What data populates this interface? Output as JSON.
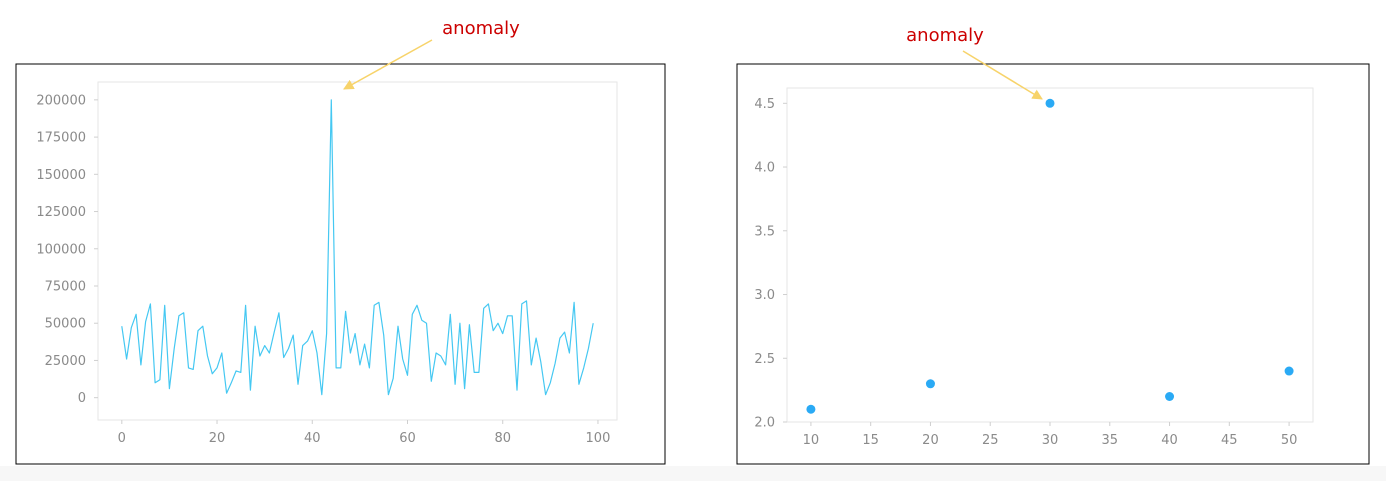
{
  "colors": {
    "series": "#45c8f2",
    "marker": "#2aaaf5",
    "annotation_text": "#cc0000",
    "annotation_arrow": "#f7d36a"
  },
  "chart_data": [
    {
      "type": "line",
      "title": "",
      "xlabel": "",
      "ylabel": "",
      "xlim": [
        -5,
        104
      ],
      "ylim": [
        -15000,
        212000
      ],
      "xticks": [
        0,
        20,
        40,
        60,
        80,
        100
      ],
      "xtick_labels": [
        "0",
        "20",
        "40",
        "60",
        "80",
        "100"
      ],
      "yticks": [
        0,
        25000,
        50000,
        75000,
        100000,
        125000,
        150000,
        175000,
        200000
      ],
      "ytick_labels": [
        "0",
        "25000",
        "50000",
        "75000",
        "100000",
        "125000",
        "150000",
        "175000",
        "200000"
      ],
      "grid": false,
      "x": [
        0,
        1,
        2,
        3,
        4,
        5,
        6,
        7,
        8,
        9,
        10,
        11,
        12,
        13,
        14,
        15,
        16,
        17,
        18,
        19,
        20,
        21,
        22,
        23,
        24,
        25,
        26,
        27,
        28,
        29,
        30,
        31,
        32,
        33,
        34,
        35,
        36,
        37,
        38,
        39,
        40,
        41,
        42,
        43,
        44,
        45,
        46,
        47,
        48,
        49,
        50,
        51,
        52,
        53,
        54,
        55,
        56,
        57,
        58,
        59,
        60,
        61,
        62,
        63,
        64,
        65,
        66,
        67,
        68,
        69,
        70,
        71,
        72,
        73,
        74,
        75,
        76,
        77,
        78,
        79,
        80,
        81,
        82,
        83,
        84,
        85,
        86,
        87,
        88,
        89,
        90,
        91,
        92,
        93,
        94,
        95,
        96,
        97,
        98,
        99
      ],
      "series": [
        {
          "values": [
            48000,
            26000,
            47000,
            56000,
            22000,
            51000,
            63000,
            10000,
            12000,
            62000,
            6000,
            33000,
            55000,
            57000,
            20000,
            19000,
            45000,
            48000,
            28000,
            16000,
            20000,
            30000,
            3000,
            10000,
            18000,
            17000,
            62000,
            5000,
            48000,
            28000,
            35000,
            30000,
            44000,
            57000,
            27000,
            33000,
            42000,
            9000,
            35000,
            38000,
            45000,
            30000,
            2000,
            43000,
            200000,
            20000,
            20000,
            58000,
            30000,
            43000,
            22000,
            36000,
            20000,
            62000,
            64000,
            42000,
            2000,
            13000,
            48000,
            26000,
            15000,
            56000,
            62000,
            52000,
            50000,
            11000,
            30000,
            28000,
            22000,
            56000,
            9000,
            50000,
            6000,
            49000,
            17000,
            17000,
            60000,
            63000,
            45000,
            50000,
            43000,
            55000,
            55000,
            5000,
            63000,
            65000,
            22000,
            40000,
            24000,
            2000,
            10000,
            23000,
            40000,
            44000,
            30000,
            64000,
            9000,
            20000,
            33000,
            50000
          ]
        }
      ],
      "annotations": [
        {
          "text": "anomaly",
          "target_x": 44,
          "target_y": 200000
        }
      ]
    },
    {
      "type": "scatter",
      "title": "",
      "xlabel": "",
      "ylabel": "",
      "xlim": [
        8,
        52
      ],
      "ylim": [
        2.0,
        4.62
      ],
      "xticks": [
        10,
        15,
        20,
        25,
        30,
        35,
        40,
        45,
        50
      ],
      "xtick_labels": [
        "10",
        "15",
        "20",
        "25",
        "30",
        "35",
        "40",
        "45",
        "50"
      ],
      "yticks": [
        2.0,
        2.5,
        3.0,
        3.5,
        4.0,
        4.5
      ],
      "ytick_labels": [
        "2.0",
        "2.5",
        "3.0",
        "3.5",
        "4.0",
        "4.5"
      ],
      "grid": false,
      "x": [
        10,
        20,
        30,
        40,
        50
      ],
      "series": [
        {
          "values": [
            2.1,
            2.3,
            4.5,
            2.2,
            2.4
          ]
        }
      ],
      "annotations": [
        {
          "text": "anomaly",
          "target_x": 30,
          "target_y": 4.5
        }
      ]
    }
  ]
}
